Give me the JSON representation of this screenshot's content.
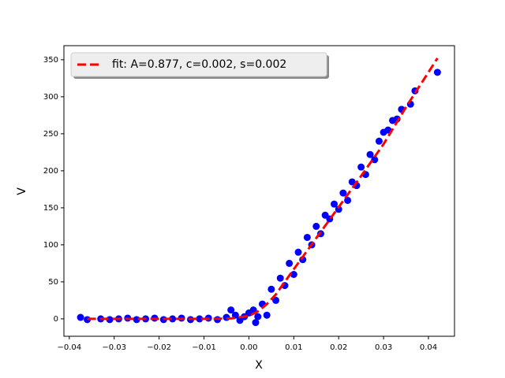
{
  "chart_data": {
    "type": "scatter",
    "xlabel": "X",
    "ylabel": "V",
    "xlim": [
      -0.0412,
      0.0458
    ],
    "ylim": [
      -23.5,
      369
    ],
    "xticks": [
      {
        "value": -0.04,
        "label": "−0.04"
      },
      {
        "value": -0.03,
        "label": "−0.03"
      },
      {
        "value": -0.02,
        "label": "−0.02"
      },
      {
        "value": -0.01,
        "label": "−0.01"
      },
      {
        "value": 0,
        "label": "0.00"
      },
      {
        "value": 0.01,
        "label": "0.01"
      },
      {
        "value": 0.02,
        "label": "0.02"
      },
      {
        "value": 0.03,
        "label": "0.03"
      },
      {
        "value": 0.04,
        "label": "0.04"
      }
    ],
    "yticks": [
      0,
      50,
      100,
      150,
      200,
      250,
      300,
      350
    ],
    "legend": "upper left",
    "series": [
      {
        "type": "scatter",
        "color": "#0000ff",
        "x": [
          -0.0375,
          -0.036,
          -0.033,
          -0.031,
          -0.029,
          -0.027,
          -0.025,
          -0.023,
          -0.021,
          -0.019,
          -0.017,
          -0.015,
          -0.013,
          -0.011,
          -0.009,
          -0.007,
          -0.005,
          -0.004,
          -0.003,
          -0.002,
          -0.001,
          0,
          0.001,
          0.0015,
          0.002,
          0.003,
          0.004,
          0.005,
          0.006,
          0.007,
          0.008,
          0.009,
          0.01,
          0.011,
          0.012,
          0.013,
          0.014,
          0.015,
          0.016,
          0.017,
          0.018,
          0.019,
          0.02,
          0.021,
          0.022,
          0.023,
          0.024,
          0.025,
          0.026,
          0.027,
          0.028,
          0.029,
          0.03,
          0.031,
          0.032,
          0.033,
          0.034,
          0.036,
          0.037,
          0.042
        ],
        "values": [
          2,
          -1,
          0,
          -1,
          0,
          1,
          -1,
          0,
          1,
          -1,
          0,
          1,
          -1,
          0,
          1,
          -1,
          2,
          12,
          5,
          -2,
          3,
          8,
          12,
          -5,
          3,
          20,
          5,
          40,
          25,
          55,
          45,
          75,
          60,
          90,
          80,
          110,
          100,
          125,
          115,
          140,
          135,
          155,
          148,
          170,
          160,
          185,
          180,
          205,
          195,
          222,
          215,
          240,
          252,
          255,
          268,
          270,
          283,
          290,
          308,
          333
        ]
      },
      {
        "type": "line",
        "name": "fit: A=0.877, c=0.002, s=0.002",
        "color": "#ff0000",
        "dashed": true,
        "x": [
          -0.036,
          -0.03,
          -0.02,
          -0.01,
          -0.004,
          0,
          0.002,
          0.004,
          0.006,
          0.01,
          0.015,
          0.02,
          0.025,
          0.03,
          0.035,
          0.042
        ],
        "values": [
          0,
          0,
          0,
          0,
          0.5,
          4,
          10,
          20,
          33,
          67,
          109,
          151,
          193,
          236,
          286,
          352
        ]
      }
    ]
  }
}
